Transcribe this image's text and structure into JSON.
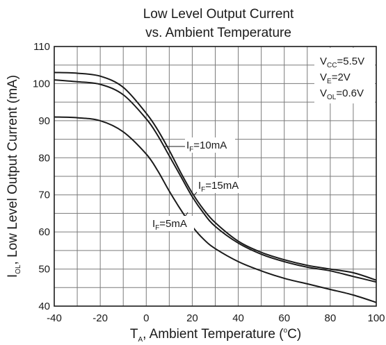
{
  "chart_data": {
    "type": "line",
    "title_line1": "Low Level Output Current",
    "title_line2": "vs. Ambient Temperature",
    "xlabel": {
      "main": "T",
      "sub": "A",
      "rest": ", Ambient Temperature (",
      "sup": "o",
      "end": "C)"
    },
    "ylabel": {
      "main": "I",
      "sub": "OL",
      "rest": ", Low Level Output Current (mA)"
    },
    "xlim": [
      -40,
      100
    ],
    "ylim": [
      40,
      110
    ],
    "x_ticks": [
      "-40",
      "-20",
      "0",
      "20",
      "40",
      "60",
      "80",
      "100"
    ],
    "y_ticks": [
      "40",
      "50",
      "60",
      "70",
      "80",
      "90",
      "100",
      "110"
    ],
    "x_grid_step": 10,
    "y_grid_step": 5,
    "grid": true,
    "conditions": [
      {
        "main": "V",
        "sub": "CC",
        "value": "=5.5V"
      },
      {
        "main": "V",
        "sub": "E",
        "value": "=2V"
      },
      {
        "main": "V",
        "sub": "OL",
        "value": "=0.6V"
      }
    ],
    "series": [
      {
        "label_main": "I",
        "label_sub": "F",
        "label_value": "=15mA",
        "x": [
          -40,
          -30,
          -20,
          -10,
          0,
          5,
          10,
          15,
          20,
          25,
          30,
          40,
          50,
          60,
          70,
          80,
          90,
          100
        ],
        "y": [
          103,
          102.8,
          102,
          99,
          92,
          87.5,
          82,
          76,
          70.5,
          66,
          62.5,
          57.5,
          54.5,
          52.5,
          51,
          50,
          49,
          47
        ]
      },
      {
        "label_main": "I",
        "label_sub": "F",
        "label_value": "=10mA",
        "x": [
          -40,
          -30,
          -20,
          -10,
          0,
          5,
          10,
          15,
          20,
          25,
          30,
          40,
          50,
          60,
          70,
          80,
          90,
          100
        ],
        "y": [
          101,
          100.5,
          99.8,
          97,
          90.5,
          86,
          80.5,
          75,
          69.5,
          65,
          61.5,
          57,
          54,
          52,
          50.5,
          49.5,
          48,
          46.5
        ]
      },
      {
        "label_main": "I",
        "label_sub": "F",
        "label_value": "=5mA",
        "x": [
          -40,
          -30,
          -20,
          -10,
          0,
          5,
          10,
          15,
          20,
          25,
          30,
          40,
          50,
          60,
          70,
          80,
          90,
          100
        ],
        "y": [
          91,
          90.8,
          90,
          87,
          81,
          76.5,
          71,
          66,
          61.5,
          58,
          55.5,
          52,
          49.5,
          47.5,
          46,
          44.5,
          43,
          41
        ]
      }
    ]
  }
}
